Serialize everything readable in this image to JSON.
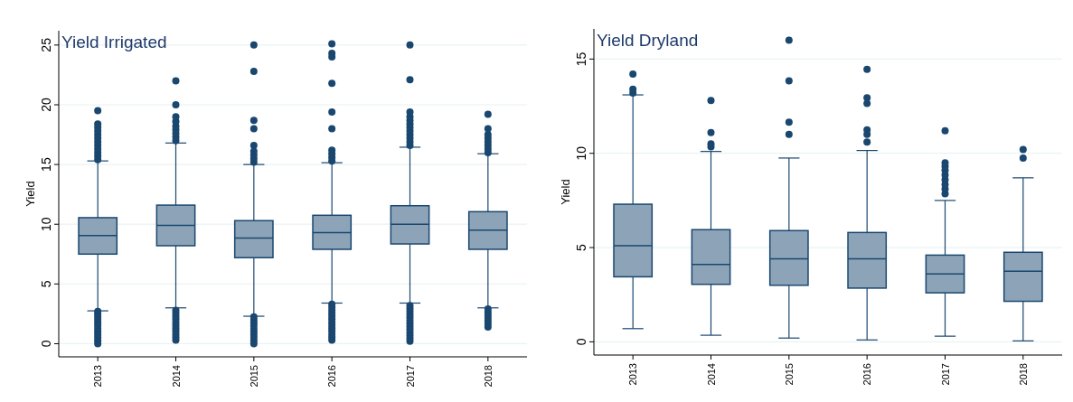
{
  "chart_data": [
    {
      "type": "box",
      "title": "Yield Irrigated",
      "ylabel": "Yield",
      "categories": [
        "2013",
        "2014",
        "2015",
        "2016",
        "2017",
        "2018"
      ],
      "color": "#8da4b8",
      "ylim": [
        -1.1,
        26.2
      ],
      "yticks": [
        0,
        5,
        10,
        15,
        20,
        25
      ],
      "grid": "y",
      "boxes": [
        {
          "low": 2.75,
          "q1": 7.5,
          "median": 9.05,
          "q3": 10.55,
          "high": 15.3,
          "outliers": [
            0,
            0.25,
            0.5,
            0.75,
            1,
            1.25,
            1.5,
            1.75,
            2,
            2.25,
            2.5,
            2.7,
            15.4,
            15.7,
            16,
            16.3,
            16.6,
            16.9,
            17.2,
            17.5,
            17.8,
            18.1,
            18.4,
            19.5
          ]
        },
        {
          "low": 3.0,
          "q1": 8.2,
          "median": 9.9,
          "q3": 11.6,
          "high": 16.8,
          "outliers": [
            0.3,
            0.55,
            0.8,
            1.05,
            1.3,
            1.55,
            1.8,
            2.05,
            2.3,
            2.55,
            2.8,
            17,
            17.3,
            17.6,
            17.9,
            18.2,
            18.6,
            19,
            20,
            22
          ]
        },
        {
          "low": 2.3,
          "q1": 7.2,
          "median": 8.85,
          "q3": 10.3,
          "high": 15.0,
          "outliers": [
            0,
            0.25,
            0.5,
            0.75,
            1,
            1.25,
            1.5,
            1.75,
            2,
            2.25,
            15.2,
            15.5,
            15.8,
            16.1,
            16.6,
            18,
            18.7,
            22.8,
            25
          ]
        },
        {
          "low": 3.4,
          "q1": 7.9,
          "median": 9.3,
          "q3": 10.75,
          "high": 15.15,
          "outliers": [
            0.3,
            0.55,
            0.8,
            1.05,
            1.3,
            1.55,
            1.8,
            2.05,
            2.3,
            2.55,
            2.8,
            3.05,
            3.3,
            15.3,
            15.6,
            15.9,
            16.2,
            18,
            19.4,
            21.8,
            24,
            24.3,
            25.1
          ]
        },
        {
          "low": 3.4,
          "q1": 8.35,
          "median": 10.0,
          "q3": 11.55,
          "high": 16.45,
          "outliers": [
            0.2,
            0.45,
            0.7,
            0.95,
            1.2,
            1.45,
            1.7,
            1.95,
            2.2,
            2.45,
            2.7,
            2.95,
            3.2,
            16.6,
            16.9,
            17.2,
            17.5,
            17.8,
            18.1,
            18.4,
            18.7,
            19,
            19.4,
            22.1,
            25
          ]
        },
        {
          "low": 3.0,
          "q1": 7.9,
          "median": 9.5,
          "q3": 11.05,
          "high": 15.9,
          "outliers": [
            1.4,
            1.65,
            1.9,
            2.15,
            2.4,
            2.65,
            2.9,
            16,
            16.3,
            16.6,
            16.9,
            17.2,
            17.5,
            18,
            19.2
          ]
        }
      ]
    },
    {
      "type": "box",
      "title": "Yield Dryland",
      "ylabel": "Yield",
      "categories": [
        "2013",
        "2014",
        "2015",
        "2016",
        "2017",
        "2018"
      ],
      "color": "#8da4b8",
      "ylim": [
        -0.7,
        16.6
      ],
      "yticks": [
        0,
        5,
        10,
        15
      ],
      "grid": "y",
      "boxes": [
        {
          "low": 0.7,
          "q1": 3.45,
          "median": 5.1,
          "q3": 7.3,
          "high": 13.1,
          "outliers": [
            13.2,
            13.4,
            14.2
          ]
        },
        {
          "low": 0.35,
          "q1": 3.05,
          "median": 4.1,
          "q3": 5.95,
          "high": 10.1,
          "outliers": [
            10.35,
            10.5,
            11.1,
            12.8
          ]
        },
        {
          "low": 0.2,
          "q1": 3.0,
          "median": 4.4,
          "q3": 5.9,
          "high": 9.75,
          "outliers": [
            11.0,
            11.65,
            13.85,
            16.0
          ]
        },
        {
          "low": 0.1,
          "q1": 2.85,
          "median": 4.4,
          "q3": 5.8,
          "high": 10.15,
          "outliers": [
            10.6,
            11.0,
            11.25,
            12.65,
            12.95,
            14.45
          ]
        },
        {
          "low": 0.3,
          "q1": 2.6,
          "median": 3.6,
          "q3": 4.6,
          "high": 7.5,
          "outliers": [
            7.85,
            8.1,
            8.35,
            8.6,
            8.85,
            9.1,
            9.3,
            9.5,
            11.2
          ]
        },
        {
          "low": 0.05,
          "q1": 2.15,
          "median": 3.75,
          "q3": 4.75,
          "high": 8.7,
          "outliers": [
            9.75,
            10.2
          ]
        }
      ]
    }
  ]
}
